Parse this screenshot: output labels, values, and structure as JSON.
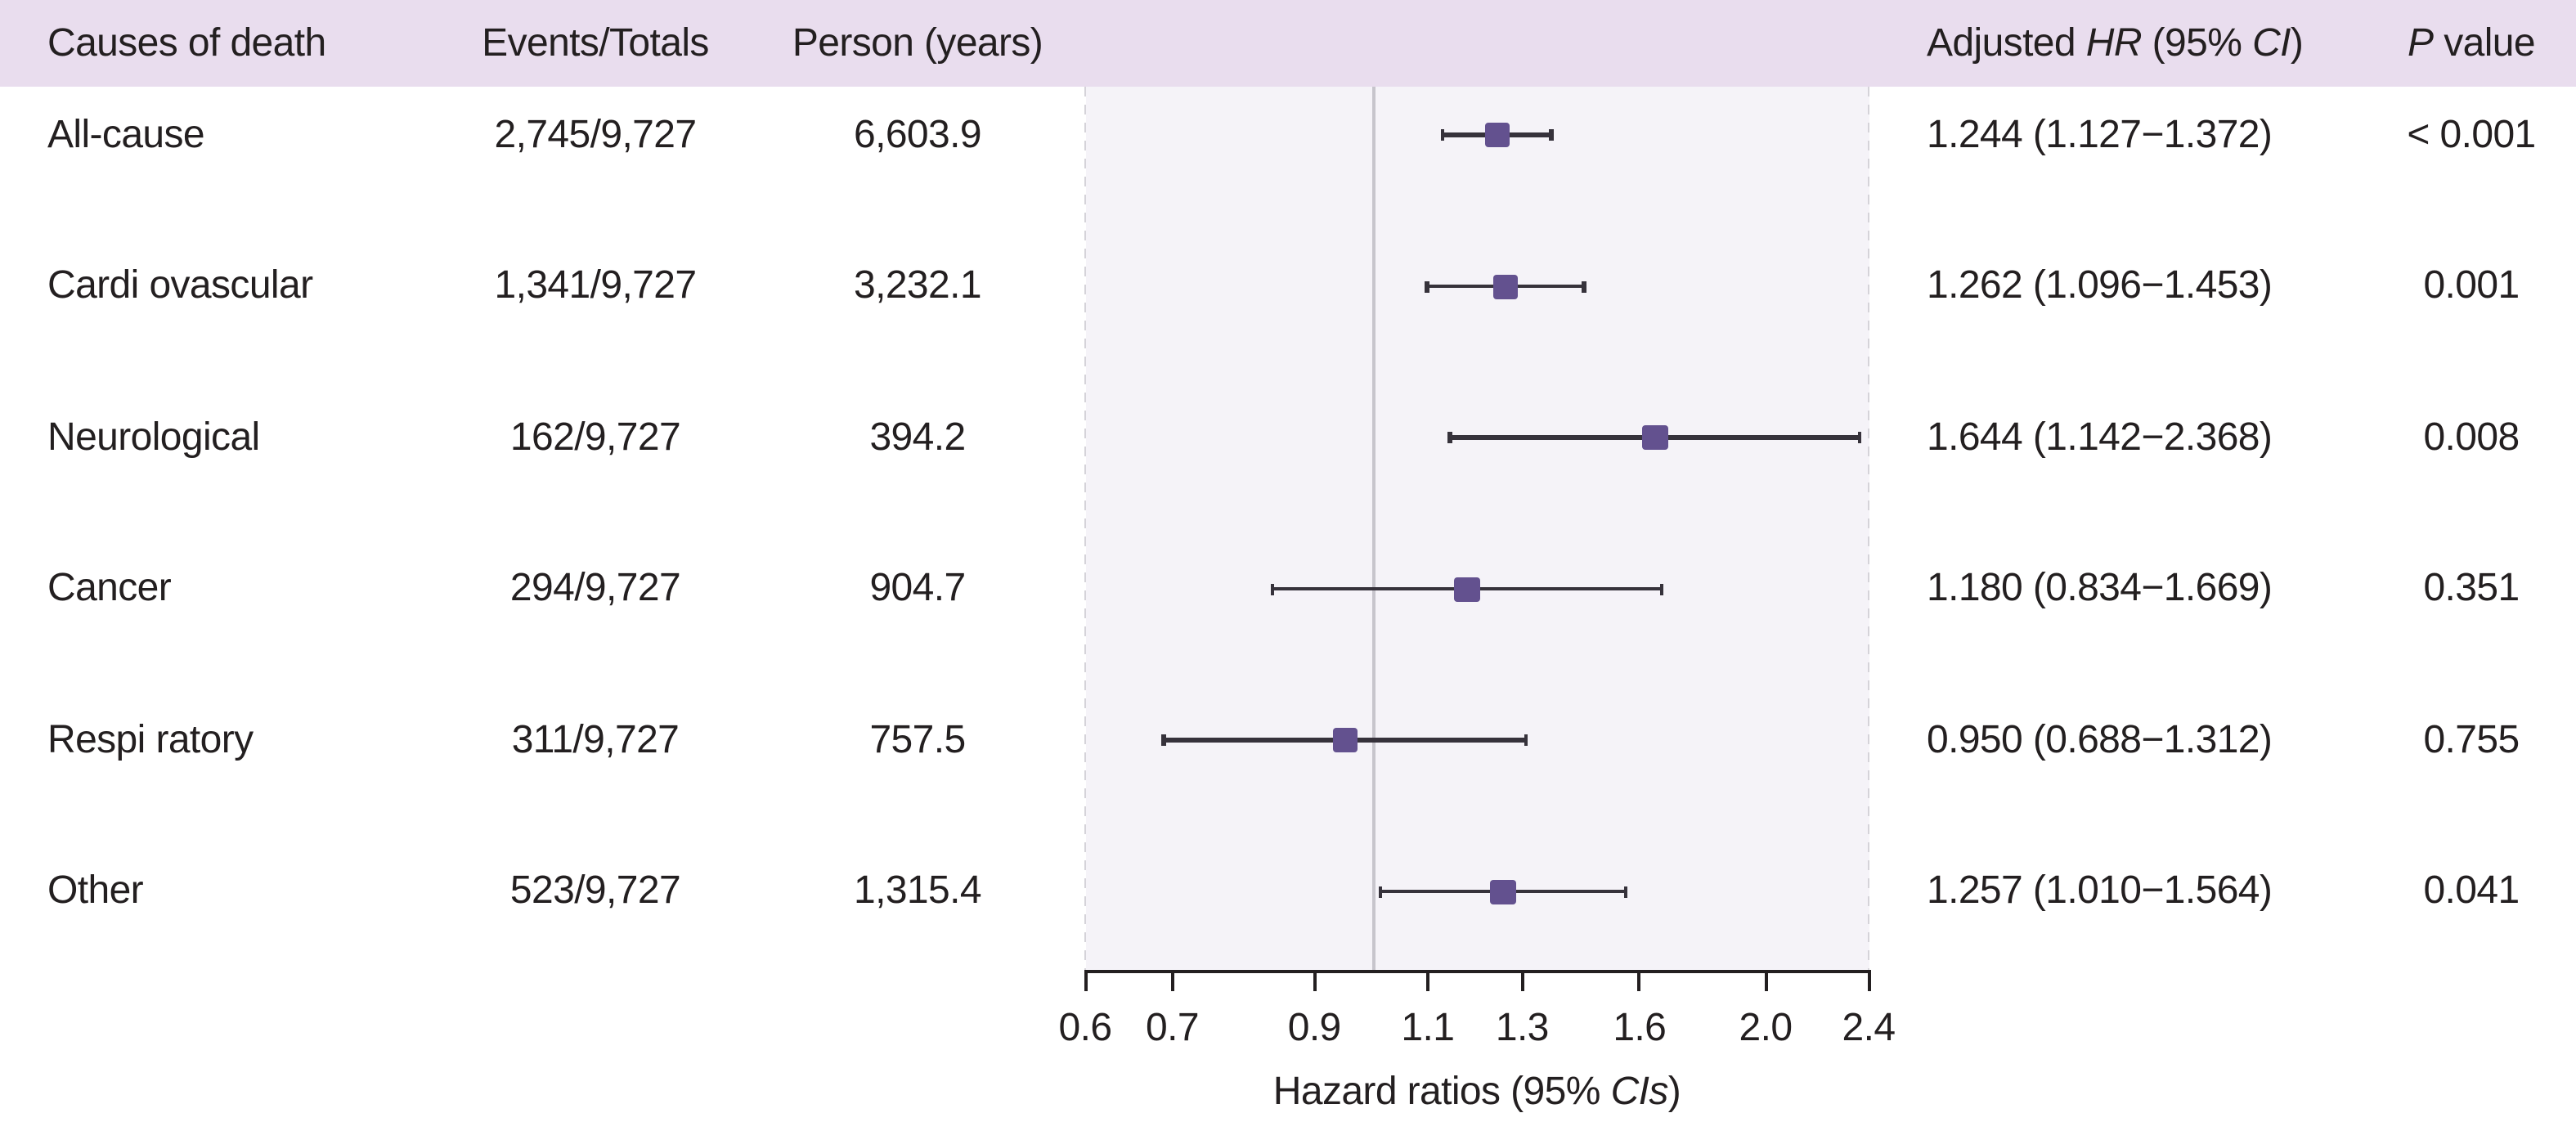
{
  "figure": {
    "header": {
      "causes_label": "Causes of death",
      "events_label": "Events/Totals",
      "person_label": "Person (years)",
      "adjusted_hr_segments": {
        "pre": "Adjusted ",
        "hr_italic": "HR",
        "mid": " (95% ",
        "ci_italic": "CI",
        "post": ")"
      },
      "p_value_segments": {
        "p_italic": "P",
        "rest": " value"
      }
    }
  },
  "chart_data": {
    "type": "forest",
    "x_scale": "log",
    "x_range": [
      0.6,
      2.4
    ],
    "x_ticks": [
      {
        "label": "0.6",
        "value": 0.6
      },
      {
        "label": "0.7",
        "value": 0.7
      },
      {
        "label": "0.9",
        "value": 0.9
      },
      {
        "label": "1.1",
        "value": 1.1
      },
      {
        "label": "1.3",
        "value": 1.3
      },
      {
        "label": "1.6",
        "value": 1.6
      },
      {
        "label": "2.0",
        "value": 2.0
      },
      {
        "label": "2.4",
        "value": 2.4
      }
    ],
    "reference_line": 1.0,
    "xlabel_segments": {
      "pre": "Hazard ratios (95% ",
      "cis_italic": "CIs",
      "post": ")"
    },
    "rows": [
      {
        "cause": "All-cause",
        "events_totals": "2,745/9,727",
        "person_years": "6,603.9",
        "hr": 1.244,
        "ci_low": 1.127,
        "ci_high": 1.372,
        "hr_text": "1.244 (1.127−1.372)",
        "p_value": "< 0.001"
      },
      {
        "cause": "Cardi ovascular",
        "events_totals": "1,341/9,727",
        "person_years": "3,232.1",
        "hr": 1.262,
        "ci_low": 1.096,
        "ci_high": 1.453,
        "hr_text": "1.262 (1.096−1.453)",
        "p_value": "0.001"
      },
      {
        "cause": "Neurological",
        "events_totals": "162/9,727",
        "person_years": "394.2",
        "hr": 1.644,
        "ci_low": 1.142,
        "ci_high": 2.368,
        "hr_text": "1.644 (1.142−2.368)",
        "p_value": "0.008"
      },
      {
        "cause": "Cancer",
        "events_totals": "294/9,727",
        "person_years": "904.7",
        "hr": 1.18,
        "ci_low": 0.834,
        "ci_high": 1.669,
        "hr_text": "1.180 (0.834−1.669)",
        "p_value": "0.351"
      },
      {
        "cause": "Respi ratory",
        "events_totals": "311/9,727",
        "person_years": "757.5",
        "hr": 0.95,
        "ci_low": 0.688,
        "ci_high": 1.312,
        "hr_text": "0.950 (0.688−1.312)",
        "p_value": "0.755"
      },
      {
        "cause": "Other",
        "events_totals": "523/9,727",
        "person_years": "1,315.4",
        "hr": 1.257,
        "ci_low": 1.01,
        "ci_high": 1.564,
        "hr_text": "1.257 (1.010−1.564)",
        "p_value": "0.041"
      }
    ],
    "colors": {
      "header_bg": "#e9ddee",
      "plot_bg": "#f5f3f8",
      "marker": "#63518f",
      "ci_line": "#36323b",
      "axis": "#231f20",
      "reference_line": "#c7c5cc",
      "dashed_border": "#d5d3d9",
      "text": "#231f20"
    }
  }
}
